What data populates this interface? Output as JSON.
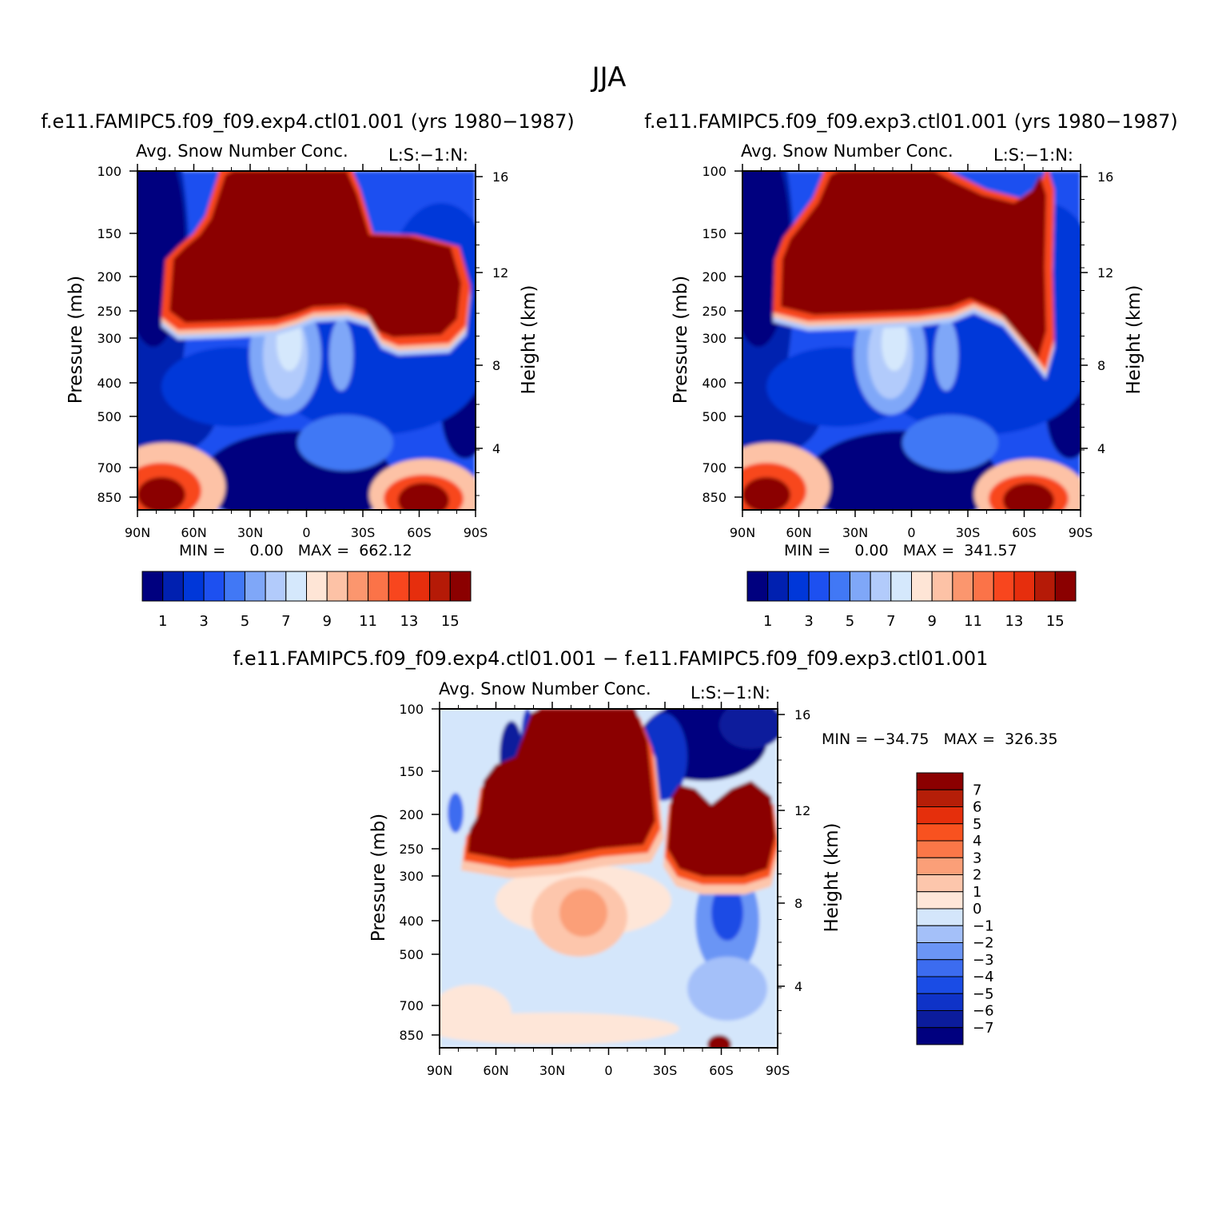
{
  "figure": {
    "title": "JJA"
  },
  "colors": {
    "abs_scale": [
      "#00007f",
      "#0020b0",
      "#0037d9",
      "#1d50f0",
      "#4178f5",
      "#7fa7f8",
      "#b2cbfb",
      "#d5e8fc",
      "#fee5d6",
      "#fdc2a6",
      "#fb966e",
      "#fb7348",
      "#f8461e",
      "#e62e0d",
      "#b51a07",
      "#8b0000"
    ],
    "diff_scale": [
      "#00007f",
      "#0b1c9c",
      "#0f33c8",
      "#1a4ce5",
      "#3c6cf0",
      "#6b95f5",
      "#a4c0f9",
      "#d4e6fb",
      "#fee6d8",
      "#fdc6ac",
      "#fb9f78",
      "#fb7748",
      "#f8521f",
      "#e52f0c",
      "#b51e08",
      "#8b0000"
    ]
  },
  "panels": [
    {
      "title": "f.e11.FAMIPC5.f09_f09.exp4.ctl01.001 (yrs 1980−1987)",
      "left_label": "Avg. Snow Number Conc.",
      "right_label": "L:S:−1:N:",
      "stats": "MIN =     0.00   MAX =  662.12",
      "y_label": "Pressure (mb)",
      "y2_label": "Height (km)"
    },
    {
      "title": "f.e11.FAMIPC5.f09_f09.exp3.ctl01.001 (yrs 1980−1987)",
      "left_label": "Avg. Snow Number Conc.",
      "right_label": "L:S:−1:N:",
      "stats": "MIN =     0.00   MAX =  341.57",
      "y_label": "Pressure (mb)",
      "y2_label": "Height (km)"
    },
    {
      "title": "f.e11.FAMIPC5.f09_f09.exp4.ctl01.001 − f.e11.FAMIPC5.f09_f09.exp3.ctl01.001",
      "left_label": "Avg. Snow Number Conc.",
      "right_label": "L:S:−1:N:",
      "stats": "MIN = −34.75   MAX =  326.35",
      "y_label": "Pressure (mb)",
      "y2_label": "Height (km)"
    }
  ],
  "chart_data": [
    {
      "type": "heatmap",
      "title": "f.e11.FAMIPC5.f09_f09.exp4.ctl01.001 (yrs 1980−1987)",
      "subtitle": "Avg. Snow Number Conc.",
      "xlabel": "",
      "ylabel": "Pressure (mb)",
      "y2label": "Height (km)",
      "x_ticks": [
        "90N",
        "60N",
        "30N",
        "0",
        "30S",
        "60S",
        "90S"
      ],
      "y_ticks": [
        "100",
        "150",
        "200",
        "250",
        "300",
        "400",
        "500",
        "700",
        "850"
      ],
      "y2_ticks": [
        "16",
        "12",
        "8",
        "4"
      ],
      "y_range": [
        100,
        925
      ],
      "colorbar_levels": [
        1,
        2,
        3,
        4,
        5,
        6,
        7,
        8,
        9,
        10,
        11,
        12,
        13,
        14,
        15
      ],
      "colorbar_labels": [
        "1",
        "3",
        "5",
        "7",
        "9",
        "11",
        "13",
        "15"
      ],
      "min": 0.0,
      "max": 662.12
    },
    {
      "type": "heatmap",
      "title": "f.e11.FAMIPC5.f09_f09.exp3.ctl01.001 (yrs 1980−1987)",
      "subtitle": "Avg. Snow Number Conc.",
      "xlabel": "",
      "ylabel": "Pressure (mb)",
      "y2label": "Height (km)",
      "x_ticks": [
        "90N",
        "60N",
        "30N",
        "0",
        "30S",
        "60S",
        "90S"
      ],
      "y_ticks": [
        "100",
        "150",
        "200",
        "250",
        "300",
        "400",
        "500",
        "700",
        "850"
      ],
      "y2_ticks": [
        "16",
        "12",
        "8",
        "4"
      ],
      "y_range": [
        100,
        925
      ],
      "colorbar_levels": [
        1,
        2,
        3,
        4,
        5,
        6,
        7,
        8,
        9,
        10,
        11,
        12,
        13,
        14,
        15
      ],
      "colorbar_labels": [
        "1",
        "3",
        "5",
        "7",
        "9",
        "11",
        "13",
        "15"
      ],
      "min": 0.0,
      "max": 341.57
    },
    {
      "type": "heatmap",
      "title": "f.e11.FAMIPC5.f09_f09.exp4.ctl01.001 − f.e11.FAMIPC5.f09_f09.exp3.ctl01.001",
      "subtitle": "Avg. Snow Number Conc.",
      "xlabel": "",
      "ylabel": "Pressure (mb)",
      "y2label": "Height (km)",
      "x_ticks": [
        "90N",
        "60N",
        "30N",
        "0",
        "30S",
        "60S",
        "90S"
      ],
      "y_ticks": [
        "100",
        "150",
        "200",
        "250",
        "300",
        "400",
        "500",
        "700",
        "850"
      ],
      "y2_ticks": [
        "16",
        "12",
        "8",
        "4"
      ],
      "y_range": [
        100,
        925
      ],
      "colorbar_levels": [
        -7,
        -6,
        -5,
        -4,
        -3,
        -2,
        -1,
        0,
        1,
        2,
        3,
        4,
        5,
        6,
        7
      ],
      "colorbar_labels": [
        "7",
        "6",
        "5",
        "4",
        "3",
        "2",
        "1",
        "0",
        "−1",
        "−2",
        "−3",
        "−4",
        "−5",
        "−6",
        "−7"
      ],
      "min": -34.75,
      "max": 326.35
    }
  ]
}
